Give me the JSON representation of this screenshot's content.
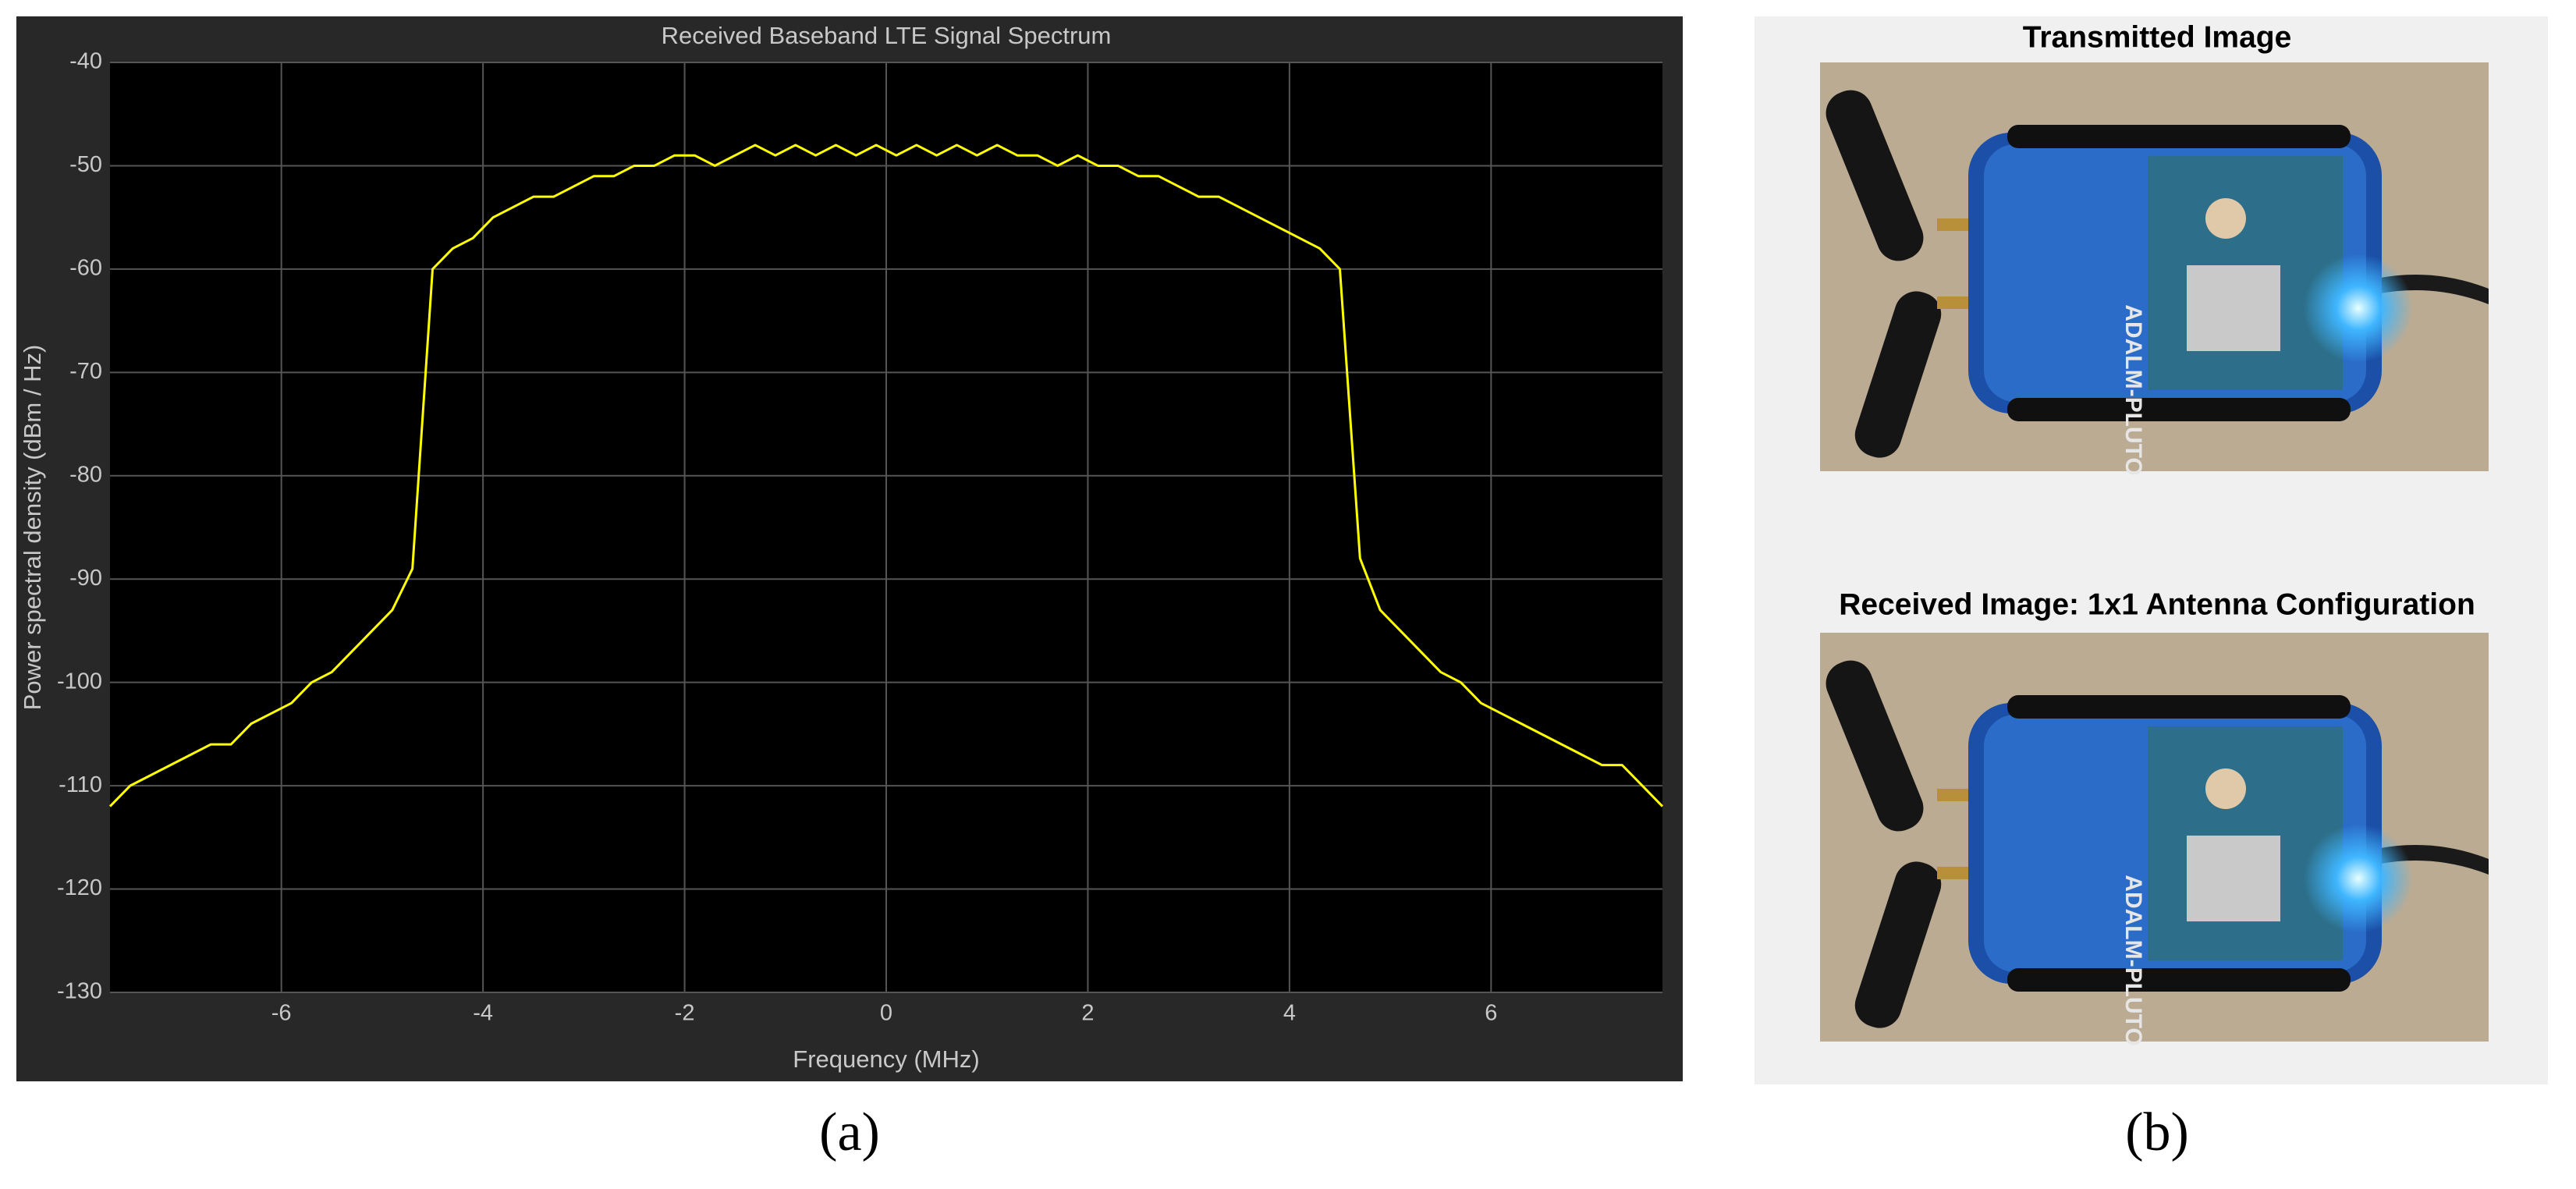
{
  "chart_data": {
    "type": "line",
    "title": "Received Baseband LTE Signal Spectrum",
    "xlabel": "Frequency (MHz)",
    "ylabel": "Power spectral density (dBm / Hz)",
    "x": [
      -7.7,
      -7.5,
      -7.3,
      -7.1,
      -6.9,
      -6.7,
      -6.5,
      -6.3,
      -6.1,
      -5.9,
      -5.7,
      -5.5,
      -5.3,
      -5.1,
      -4.9,
      -4.7,
      -4.5,
      -4.3,
      -4.1,
      -3.9,
      -3.7,
      -3.5,
      -3.3,
      -3.1,
      -2.9,
      -2.7,
      -2.5,
      -2.3,
      -2.1,
      -1.9,
      -1.7,
      -1.5,
      -1.3,
      -1.1,
      -0.9,
      -0.7,
      -0.5,
      -0.3,
      -0.1,
      0.1,
      0.3,
      0.5,
      0.7,
      0.9,
      1.1,
      1.3,
      1.5,
      1.7,
      1.9,
      2.1,
      2.3,
      2.5,
      2.7,
      2.9,
      3.1,
      3.3,
      3.5,
      3.7,
      3.9,
      4.1,
      4.3,
      4.5,
      4.7,
      4.9,
      5.1,
      5.3,
      5.5,
      5.7,
      5.9,
      6.1,
      6.3,
      6.5,
      6.7,
      6.9,
      7.1,
      7.3,
      7.5,
      7.7
    ],
    "values": [
      -112,
      -110,
      -109,
      -108,
      -107,
      -106,
      -106,
      -104,
      -103,
      -102,
      -100,
      -99,
      -97,
      -95,
      -93,
      -89,
      -60,
      -58,
      -57,
      -55,
      -54,
      -53,
      -53,
      -52,
      -51,
      -51,
      -50,
      -50,
      -49,
      -49,
      -50,
      -49,
      -48,
      -49,
      -48,
      -49,
      -48,
      -49,
      -48,
      -49,
      -48,
      -49,
      -48,
      -49,
      -48,
      -49,
      -49,
      -50,
      -49,
      -50,
      -50,
      -51,
      -51,
      -52,
      -53,
      -53,
      -54,
      -55,
      -56,
      -57,
      -58,
      -60,
      -88,
      -93,
      -95,
      -97,
      -99,
      -100,
      -102,
      -103,
      -104,
      -105,
      -106,
      -107,
      -108,
      -108,
      -110,
      -112
    ],
    "color": "#ffff00",
    "xlim": [
      -7.7,
      7.7
    ],
    "ylim": [
      -130,
      -40
    ],
    "xticks": [
      -6,
      -4,
      -2,
      0,
      2,
      4,
      6
    ],
    "yticks": [
      -130,
      -120,
      -110,
      -100,
      -90,
      -80,
      -70,
      -60,
      -50,
      -40
    ],
    "grid": true
  },
  "panel_a": {
    "label": "(a)"
  },
  "panel_b": {
    "label": "(b)",
    "images": [
      {
        "title": "Transmitted Image",
        "device_label": "ADALM-PLUTO"
      },
      {
        "title": "Received Image: 1x1 Antenna Configuration",
        "device_label": "ADALM-PLUTO"
      }
    ]
  }
}
